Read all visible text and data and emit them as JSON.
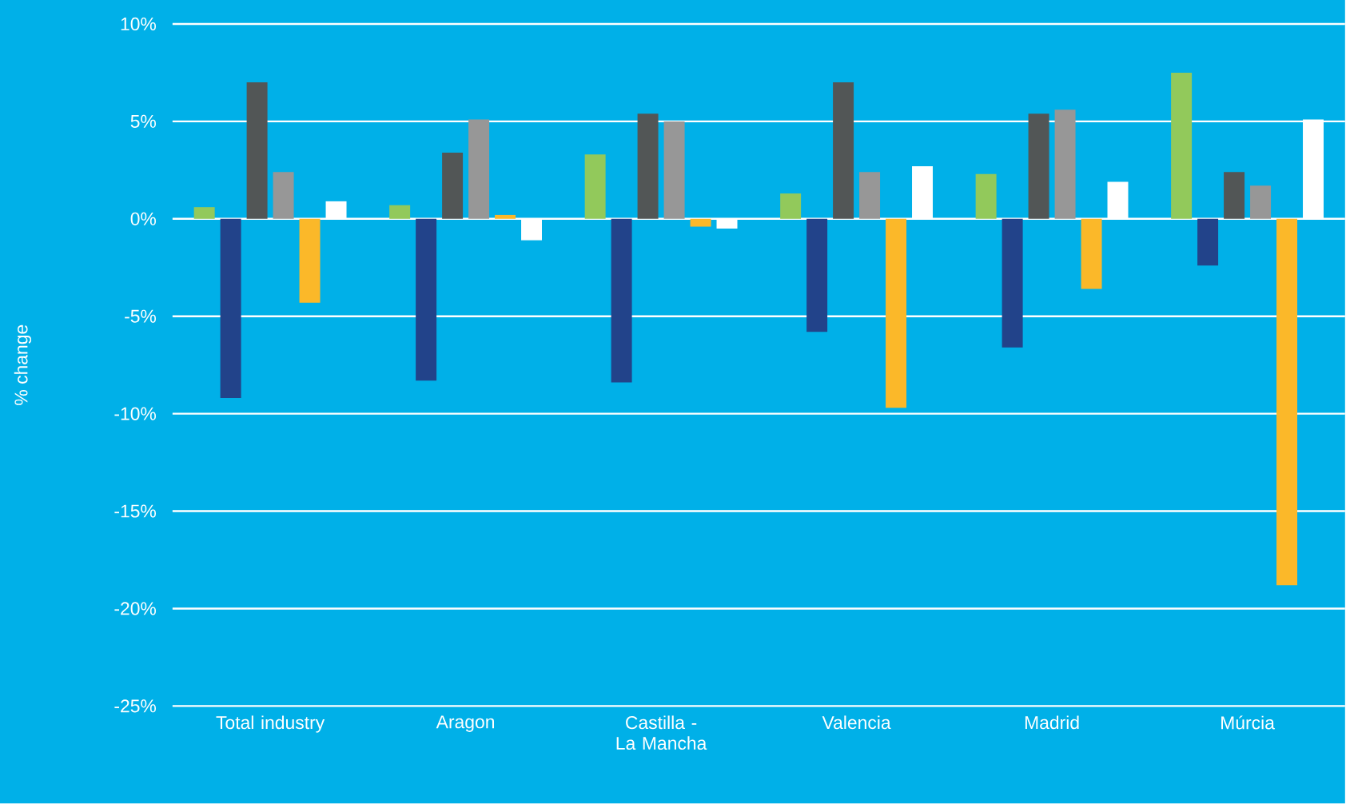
{
  "chart_data": {
    "type": "bar",
    "ylabel": "% change",
    "categories": [
      "Total industry",
      "Aragon",
      "Castilla - La Mancha",
      "Valencia",
      "Madrid",
      "Múrcia"
    ],
    "series": [
      {
        "color": "#92c95b",
        "values": [
          0.6,
          0.7,
          3.3,
          1.3,
          2.3,
          7.5
        ]
      },
      {
        "color": "#22438a",
        "values": [
          -9.2,
          -8.3,
          -8.4,
          -5.8,
          -6.6,
          -2.4
        ]
      },
      {
        "color": "#525656",
        "values": [
          7.0,
          3.4,
          5.4,
          7.0,
          5.4,
          2.4
        ]
      },
      {
        "color": "#979797",
        "values": [
          2.4,
          5.1,
          5.0,
          2.4,
          5.6,
          1.7
        ]
      },
      {
        "color": "#fbb829",
        "values": [
          -4.3,
          0.2,
          -0.4,
          -9.7,
          -3.6,
          -18.8
        ]
      },
      {
        "color": "#ffffff",
        "values": [
          0.9,
          -1.1,
          -0.5,
          2.7,
          1.9,
          5.1
        ]
      }
    ],
    "ylim": [
      -25,
      10
    ],
    "yticks": [
      {
        "value": -25,
        "label": "-25%"
      },
      {
        "value": -20,
        "label": "-20%"
      },
      {
        "value": -15,
        "label": "-15%"
      },
      {
        "value": -10,
        "label": "-10%"
      },
      {
        "value": -5,
        "label": "-5%"
      },
      {
        "value": 0,
        "label": "0%"
      },
      {
        "value": 5,
        "label": "5%"
      },
      {
        "value": 10,
        "label": "10%"
      }
    ],
    "grid": "y",
    "legend": false
  }
}
